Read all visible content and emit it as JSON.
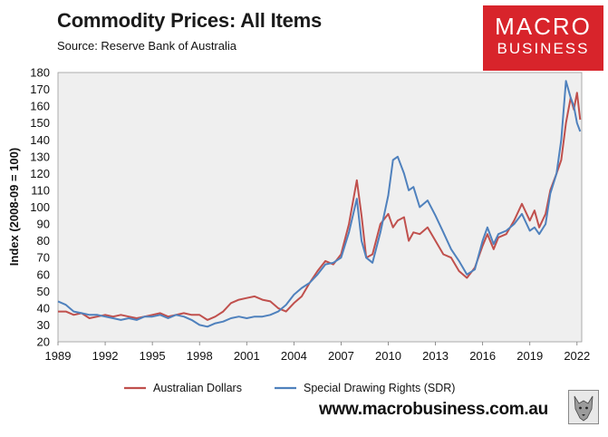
{
  "header": {
    "title": "Commodity Prices: All Items",
    "subtitle": "Source: Reserve Bank of Australia"
  },
  "logo": {
    "line1": "MACRO",
    "line2": "BUSINESS"
  },
  "footer": {
    "url": "www.macrobusiness.com.au"
  },
  "colors": {
    "aud": "#c0504d",
    "sdr": "#4f81bd",
    "brand": "#d8242b"
  },
  "chart_data": {
    "type": "line",
    "title": "Commodity Prices: All Items",
    "ylabel": "Index (2008-09 = 100)",
    "xlabel": "",
    "ylim": [
      20,
      180
    ],
    "xlim": [
      1989,
      2022.3
    ],
    "yticks": [
      20,
      30,
      40,
      50,
      60,
      70,
      80,
      90,
      100,
      110,
      120,
      130,
      140,
      150,
      160,
      170,
      180
    ],
    "xticks": [
      1989,
      1992,
      1995,
      1998,
      2001,
      2004,
      2007,
      2010,
      2013,
      2016,
      2019,
      2022
    ],
    "grid": false,
    "legend_position": "bottom",
    "series": [
      {
        "name": "Australian Dollars",
        "color": "#c0504d",
        "x": [
          1989.0,
          1989.5,
          1990.0,
          1990.5,
          1991.0,
          1991.5,
          1992.0,
          1992.5,
          1993.0,
          1993.5,
          1994.0,
          1994.5,
          1995.0,
          1995.5,
          1996.0,
          1996.5,
          1997.0,
          1997.5,
          1998.0,
          1998.5,
          1999.0,
          1999.5,
          2000.0,
          2000.5,
          2001.0,
          2001.5,
          2002.0,
          2002.5,
          2003.0,
          2003.5,
          2004.0,
          2004.5,
          2005.0,
          2005.5,
          2006.0,
          2006.5,
          2007.0,
          2007.5,
          2008.0,
          2008.3,
          2008.6,
          2009.0,
          2009.5,
          2010.0,
          2010.3,
          2010.6,
          2011.0,
          2011.3,
          2011.6,
          2012.0,
          2012.5,
          2013.0,
          2013.5,
          2014.0,
          2014.5,
          2015.0,
          2015.5,
          2016.0,
          2016.3,
          2016.7,
          2017.0,
          2017.5,
          2018.0,
          2018.5,
          2019.0,
          2019.3,
          2019.6,
          2020.0,
          2020.3,
          2020.7,
          2021.0,
          2021.3,
          2021.6,
          2021.8,
          2022.0,
          2022.2
        ],
        "values": [
          38,
          38,
          36,
          37,
          34,
          35,
          36,
          35,
          36,
          35,
          34,
          35,
          36,
          37,
          35,
          36,
          37,
          36,
          36,
          33,
          35,
          38,
          43,
          45,
          46,
          47,
          45,
          44,
          40,
          38,
          43,
          47,
          55,
          62,
          68,
          66,
          72,
          90,
          116,
          95,
          70,
          72,
          90,
          96,
          88,
          92,
          94,
          80,
          85,
          84,
          88,
          80,
          72,
          70,
          62,
          58,
          64,
          77,
          84,
          75,
          82,
          84,
          92,
          102,
          92,
          98,
          88,
          96,
          110,
          120,
          128,
          150,
          165,
          158,
          168,
          152
        ]
      },
      {
        "name": "Special Drawing Rights (SDR)",
        "color": "#4f81bd",
        "x": [
          1989.0,
          1989.5,
          1990.0,
          1990.5,
          1991.0,
          1991.5,
          1992.0,
          1992.5,
          1993.0,
          1993.5,
          1994.0,
          1994.5,
          1995.0,
          1995.5,
          1996.0,
          1996.5,
          1997.0,
          1997.5,
          1998.0,
          1998.5,
          1999.0,
          1999.5,
          2000.0,
          2000.5,
          2001.0,
          2001.5,
          2002.0,
          2002.5,
          2003.0,
          2003.5,
          2004.0,
          2004.5,
          2005.0,
          2005.5,
          2006.0,
          2006.5,
          2007.0,
          2007.5,
          2008.0,
          2008.3,
          2008.6,
          2009.0,
          2009.5,
          2010.0,
          2010.3,
          2010.6,
          2011.0,
          2011.3,
          2011.6,
          2012.0,
          2012.5,
          2013.0,
          2013.5,
          2014.0,
          2014.5,
          2015.0,
          2015.5,
          2016.0,
          2016.3,
          2016.7,
          2017.0,
          2017.5,
          2018.0,
          2018.5,
          2019.0,
          2019.3,
          2019.6,
          2020.0,
          2020.3,
          2020.7,
          2021.0,
          2021.3,
          2021.6,
          2021.8,
          2022.0,
          2022.2
        ],
        "values": [
          44,
          42,
          38,
          37,
          36,
          36,
          35,
          34,
          33,
          34,
          33,
          35,
          35,
          36,
          34,
          36,
          35,
          33,
          30,
          29,
          31,
          32,
          34,
          35,
          34,
          35,
          35,
          36,
          38,
          42,
          48,
          52,
          55,
          60,
          66,
          67,
          70,
          85,
          105,
          80,
          70,
          67,
          85,
          107,
          128,
          130,
          120,
          110,
          112,
          100,
          104,
          95,
          85,
          75,
          68,
          60,
          63,
          80,
          88,
          78,
          84,
          86,
          90,
          96,
          86,
          88,
          84,
          90,
          108,
          120,
          140,
          175,
          165,
          160,
          150,
          145
        ]
      }
    ]
  }
}
